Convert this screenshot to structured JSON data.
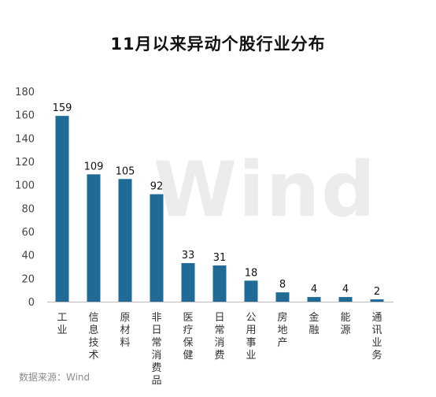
{
  "title": "11月以来异动个股行业分布",
  "source": "数据来源：Wind",
  "watermark": "Wind",
  "chart_data": {
    "type": "bar",
    "title": "11月以来异动个股行业分布",
    "categories": [
      "工业",
      "信息技术",
      "原材料",
      "非日常消费品",
      "医疗保健",
      "日常消费",
      "公用事业",
      "房地产",
      "金融",
      "能源",
      "通讯业务"
    ],
    "values": [
      159,
      109,
      105,
      92,
      33,
      31,
      18,
      8,
      4,
      4,
      2
    ],
    "ylim": [
      0,
      180
    ],
    "yticks": [
      0,
      20,
      40,
      60,
      80,
      100,
      120,
      140,
      160,
      180
    ],
    "bar_color": "#1f6b96",
    "grid": false,
    "legend": "none"
  }
}
